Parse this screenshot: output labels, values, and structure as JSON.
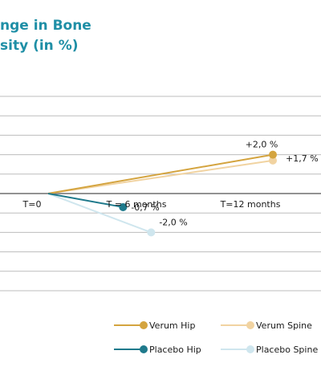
{
  "chart_data": {
    "type": "line",
    "title": [
      "nge in Bone",
      "sity (in %)"
    ],
    "categories": [
      "T=0",
      "T = 6 months",
      "T=12 months"
    ],
    "ylim": [
      -5,
      5
    ],
    "grid": true,
    "legend_position": "bottom-right",
    "series": [
      {
        "name": "Verum Hip",
        "color": "#d4a43f",
        "points": [
          {
            "x": 0,
            "y": 0
          },
          {
            "x": 12,
            "y": 2.0,
            "label": "+2,0 %"
          }
        ]
      },
      {
        "name": "Verum Spine",
        "color": "#f1d3a1",
        "points": [
          {
            "x": 0,
            "y": 0
          },
          {
            "x": 12,
            "y": 1.7,
            "label": "+1,7 %"
          }
        ]
      },
      {
        "name": "Placebo Hip",
        "color": "#1f7a8c",
        "points": [
          {
            "x": 0,
            "y": 0
          },
          {
            "x": 4,
            "y": -0.7,
            "label": "-0,7 %"
          }
        ]
      },
      {
        "name": "Placebo Spine",
        "color": "#cfe6ee",
        "points": [
          {
            "x": 0,
            "y": 0
          },
          {
            "x": 5.5,
            "y": -2.0,
            "label": "-2,0 %"
          }
        ]
      }
    ]
  }
}
